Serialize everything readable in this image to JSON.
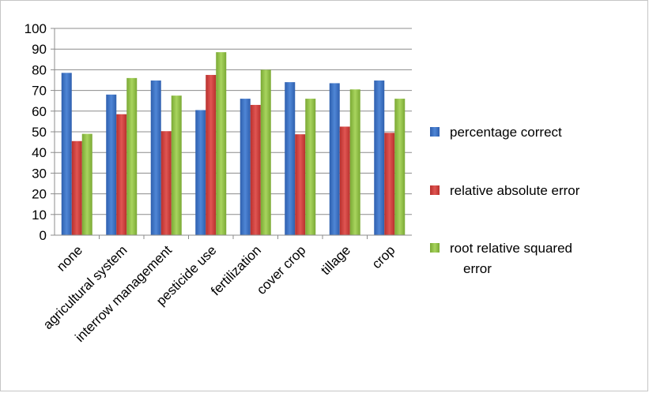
{
  "chart_data": {
    "type": "bar",
    "title": "",
    "xlabel": "",
    "ylabel": "",
    "ylim": [
      0,
      100
    ],
    "yticks": [
      0,
      10,
      20,
      30,
      40,
      50,
      60,
      70,
      80,
      90,
      100
    ],
    "grid": true,
    "legend_position": "right",
    "categories": [
      "none",
      "agricultural system",
      "interrow management",
      "pesticide use",
      "fertilization",
      "cover crop",
      "tillage",
      "crop"
    ],
    "series": [
      {
        "name": "percentage correct",
        "color": "#3e73c4",
        "values": [
          78.5,
          68,
          74.8,
          60.5,
          66,
          74,
          73.5,
          74.8
        ]
      },
      {
        "name": "relative absolute error",
        "color": "#d0403d",
        "values": [
          45.5,
          58.5,
          50.3,
          77.5,
          63,
          48.8,
          52.5,
          49.5
        ]
      },
      {
        "name": "root relative squared error",
        "color": "#92c148",
        "values": [
          49,
          76,
          67.5,
          88.5,
          80,
          66,
          70.5,
          66
        ]
      }
    ]
  }
}
